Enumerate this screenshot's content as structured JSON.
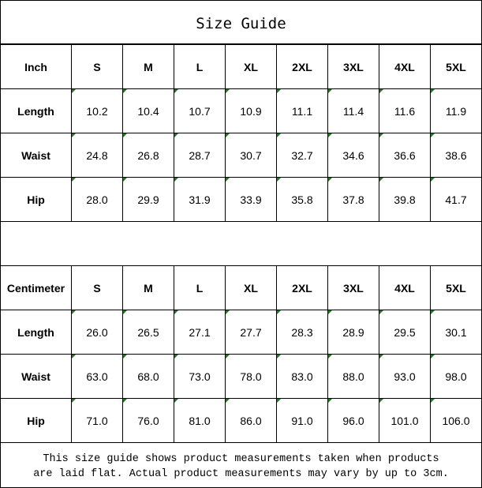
{
  "title": "Size Guide",
  "sizes": [
    "S",
    "M",
    "L",
    "XL",
    "2XL",
    "3XL",
    "4XL",
    "5XL"
  ],
  "tables": [
    {
      "unit": "Inch",
      "rows": [
        {
          "label": "Length",
          "values": [
            "10.2",
            "10.4",
            "10.7",
            "10.9",
            "11.1",
            "11.4",
            "11.6",
            "11.9"
          ]
        },
        {
          "label": "Waist",
          "values": [
            "24.8",
            "26.8",
            "28.7",
            "30.7",
            "32.7",
            "34.6",
            "36.6",
            "38.6"
          ]
        },
        {
          "label": "Hip",
          "values": [
            "28.0",
            "29.9",
            "31.9",
            "33.9",
            "35.8",
            "37.8",
            "39.8",
            "41.7"
          ]
        }
      ]
    },
    {
      "unit": "Centimeter",
      "rows": [
        {
          "label": "Length",
          "values": [
            "26.0",
            "26.5",
            "27.1",
            "27.7",
            "28.3",
            "28.9",
            "29.5",
            "30.1"
          ]
        },
        {
          "label": "Waist",
          "values": [
            "63.0",
            "68.0",
            "73.0",
            "78.0",
            "83.0",
            "88.0",
            "93.0",
            "98.0"
          ]
        },
        {
          "label": "Hip",
          "values": [
            "71.0",
            "76.0",
            "81.0",
            "86.0",
            "91.0",
            "96.0",
            "101.0",
            "106.0"
          ]
        }
      ]
    }
  ],
  "footer": {
    "line1": "This size guide shows product measurements taken when products",
    "line2": "are laid flat. Actual product measurements may vary by up to 3cm."
  }
}
